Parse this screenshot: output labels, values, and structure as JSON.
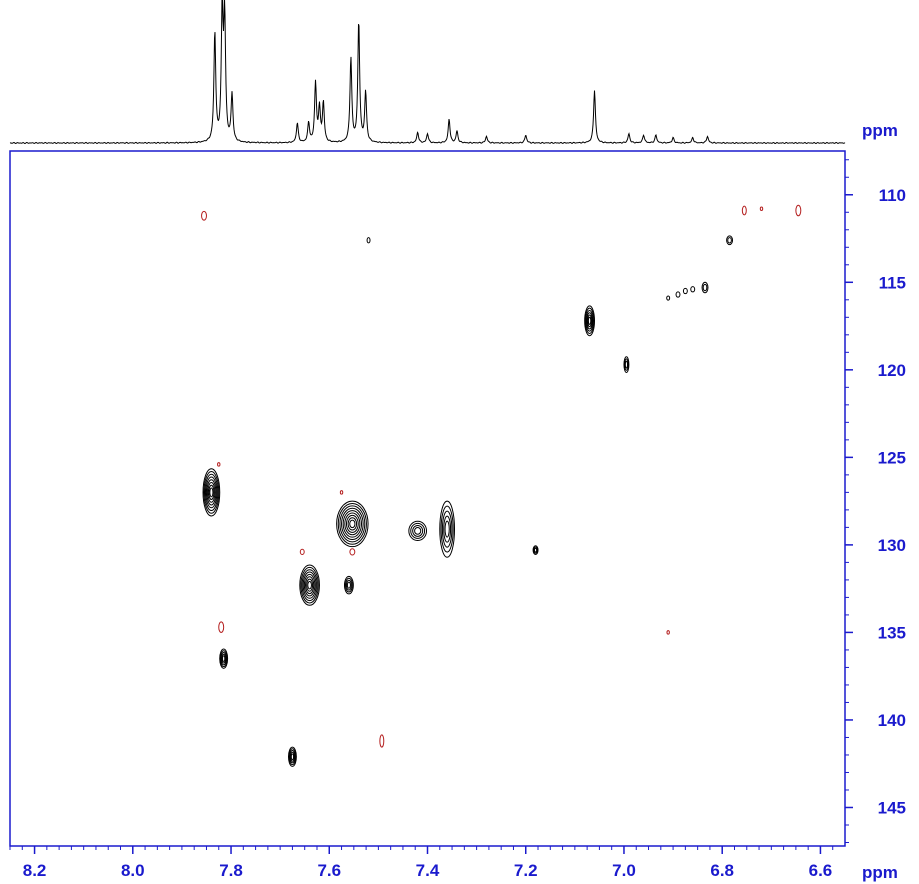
{
  "chart_data": {
    "type": "heatmap",
    "subtype": "2D NMR HSQC contour plot with 1D proton projection",
    "x_axis": {
      "unit_label": "ppm",
      "range": [
        8.25,
        6.55
      ],
      "reversed": true,
      "ticks": [
        "8.2",
        "8.0",
        "7.8",
        "7.6",
        "7.4",
        "7.2",
        "7.0",
        "6.8",
        "6.6"
      ],
      "tick_values": [
        8.2,
        8.0,
        7.8,
        7.6,
        7.4,
        7.2,
        7.0,
        6.8,
        6.6
      ]
    },
    "y_axis": {
      "unit_label": "ppm",
      "range": [
        107.5,
        147.2
      ],
      "reversed": true,
      "ticks": [
        "110",
        "115",
        "120",
        "125",
        "130",
        "135",
        "140",
        "145"
      ],
      "tick_values": [
        110,
        115,
        120,
        125,
        130,
        135,
        140,
        145
      ]
    },
    "projection_unit_label": "ppm",
    "colors": {
      "axis": "#1a1acd",
      "positive_contour": "#000000",
      "negative_contour": "#b41e1e",
      "spectrum": "#000000"
    },
    "projection_peaks": [
      {
        "ppm": 7.833,
        "height": 0.83
      },
      {
        "ppm": 7.818,
        "height": 0.98
      },
      {
        "ppm": 7.813,
        "height": 0.92
      },
      {
        "ppm": 7.798,
        "height": 0.36
      },
      {
        "ppm": 7.665,
        "height": 0.15
      },
      {
        "ppm": 7.642,
        "height": 0.15
      },
      {
        "ppm": 7.628,
        "height": 0.45
      },
      {
        "ppm": 7.62,
        "height": 0.26
      },
      {
        "ppm": 7.612,
        "height": 0.3
      },
      {
        "ppm": 7.556,
        "height": 0.64
      },
      {
        "ppm": 7.54,
        "height": 0.92
      },
      {
        "ppm": 7.526,
        "height": 0.38
      },
      {
        "ppm": 7.42,
        "height": 0.08
      },
      {
        "ppm": 7.4,
        "height": 0.07
      },
      {
        "ppm": 7.356,
        "height": 0.18
      },
      {
        "ppm": 7.34,
        "height": 0.09
      },
      {
        "ppm": 7.28,
        "height": 0.05
      },
      {
        "ppm": 7.2,
        "height": 0.06
      },
      {
        "ppm": 7.06,
        "height": 0.4
      },
      {
        "ppm": 6.99,
        "height": 0.07
      },
      {
        "ppm": 6.96,
        "height": 0.06
      },
      {
        "ppm": 6.935,
        "height": 0.06
      },
      {
        "ppm": 6.9,
        "height": 0.04
      },
      {
        "ppm": 6.86,
        "height": 0.04
      },
      {
        "ppm": 6.83,
        "height": 0.05
      }
    ],
    "cross_peaks": [
      {
        "x": 7.84,
        "y": 127.0,
        "dx": 0.017,
        "dy": 1.35,
        "levels": 8,
        "sign": "positive"
      },
      {
        "x": 7.815,
        "y": 136.5,
        "dx": 0.008,
        "dy": 0.55,
        "levels": 5,
        "sign": "positive"
      },
      {
        "x": 7.64,
        "y": 132.3,
        "dx": 0.02,
        "dy": 1.15,
        "levels": 8,
        "sign": "positive"
      },
      {
        "x": 7.675,
        "y": 142.1,
        "dx": 0.008,
        "dy": 0.55,
        "levels": 5,
        "sign": "positive"
      },
      {
        "x": 7.553,
        "y": 128.8,
        "dx": 0.032,
        "dy": 1.3,
        "levels": 9,
        "sign": "positive"
      },
      {
        "x": 7.56,
        "y": 132.3,
        "dx": 0.009,
        "dy": 0.5,
        "levels": 4,
        "sign": "positive"
      },
      {
        "x": 7.42,
        "y": 129.2,
        "dx": 0.018,
        "dy": 0.55,
        "levels": 4,
        "sign": "positive"
      },
      {
        "x": 7.36,
        "y": 129.1,
        "dx": 0.015,
        "dy": 1.6,
        "levels": 5,
        "sign": "positive"
      },
      {
        "x": 7.18,
        "y": 130.3,
        "dx": 0.005,
        "dy": 0.25,
        "levels": 3,
        "sign": "positive"
      },
      {
        "x": 7.07,
        "y": 117.2,
        "dx": 0.01,
        "dy": 0.85,
        "levels": 6,
        "sign": "positive"
      },
      {
        "x": 6.995,
        "y": 119.7,
        "dx": 0.005,
        "dy": 0.45,
        "levels": 3,
        "sign": "positive"
      },
      {
        "x": 6.785,
        "y": 112.6,
        "dx": 0.006,
        "dy": 0.25,
        "levels": 2,
        "sign": "positive"
      },
      {
        "x": 6.835,
        "y": 115.3,
        "dx": 0.006,
        "dy": 0.3,
        "levels": 2,
        "sign": "positive"
      },
      {
        "x": 6.86,
        "y": 115.4,
        "dx": 0.004,
        "dy": 0.15,
        "levels": 1,
        "sign": "positive"
      },
      {
        "x": 6.875,
        "y": 115.5,
        "dx": 0.004,
        "dy": 0.15,
        "levels": 1,
        "sign": "positive"
      },
      {
        "x": 6.89,
        "y": 115.7,
        "dx": 0.004,
        "dy": 0.15,
        "levels": 1,
        "sign": "positive"
      },
      {
        "x": 6.91,
        "y": 115.9,
        "dx": 0.003,
        "dy": 0.12,
        "levels": 1,
        "sign": "positive"
      },
      {
        "x": 7.52,
        "y": 112.6,
        "dx": 0.003,
        "dy": 0.15,
        "levels": 1,
        "sign": "positive"
      },
      {
        "x": 7.855,
        "y": 111.2,
        "dx": 0.005,
        "dy": 0.25,
        "levels": 1,
        "sign": "negative"
      },
      {
        "x": 6.755,
        "y": 110.9,
        "dx": 0.004,
        "dy": 0.25,
        "levels": 1,
        "sign": "negative"
      },
      {
        "x": 6.72,
        "y": 110.8,
        "dx": 0.002,
        "dy": 0.1,
        "levels": 1,
        "sign": "negative"
      },
      {
        "x": 6.645,
        "y": 110.9,
        "dx": 0.005,
        "dy": 0.3,
        "levels": 1,
        "sign": "negative"
      },
      {
        "x": 7.82,
        "y": 134.7,
        "dx": 0.005,
        "dy": 0.3,
        "levels": 1,
        "sign": "negative"
      },
      {
        "x": 7.825,
        "y": 125.4,
        "dx": 0.002,
        "dy": 0.1,
        "levels": 1,
        "sign": "negative"
      },
      {
        "x": 7.655,
        "y": 130.4,
        "dx": 0.004,
        "dy": 0.15,
        "levels": 1,
        "sign": "negative"
      },
      {
        "x": 7.575,
        "y": 127.0,
        "dx": 0.002,
        "dy": 0.1,
        "levels": 1,
        "sign": "negative"
      },
      {
        "x": 7.553,
        "y": 130.4,
        "dx": 0.005,
        "dy": 0.18,
        "levels": 1,
        "sign": "negative"
      },
      {
        "x": 7.493,
        "y": 141.2,
        "dx": 0.004,
        "dy": 0.35,
        "levels": 1,
        "sign": "negative"
      },
      {
        "x": 6.91,
        "y": 135.0,
        "dx": 0.002,
        "dy": 0.1,
        "levels": 1,
        "sign": "negative"
      }
    ]
  }
}
